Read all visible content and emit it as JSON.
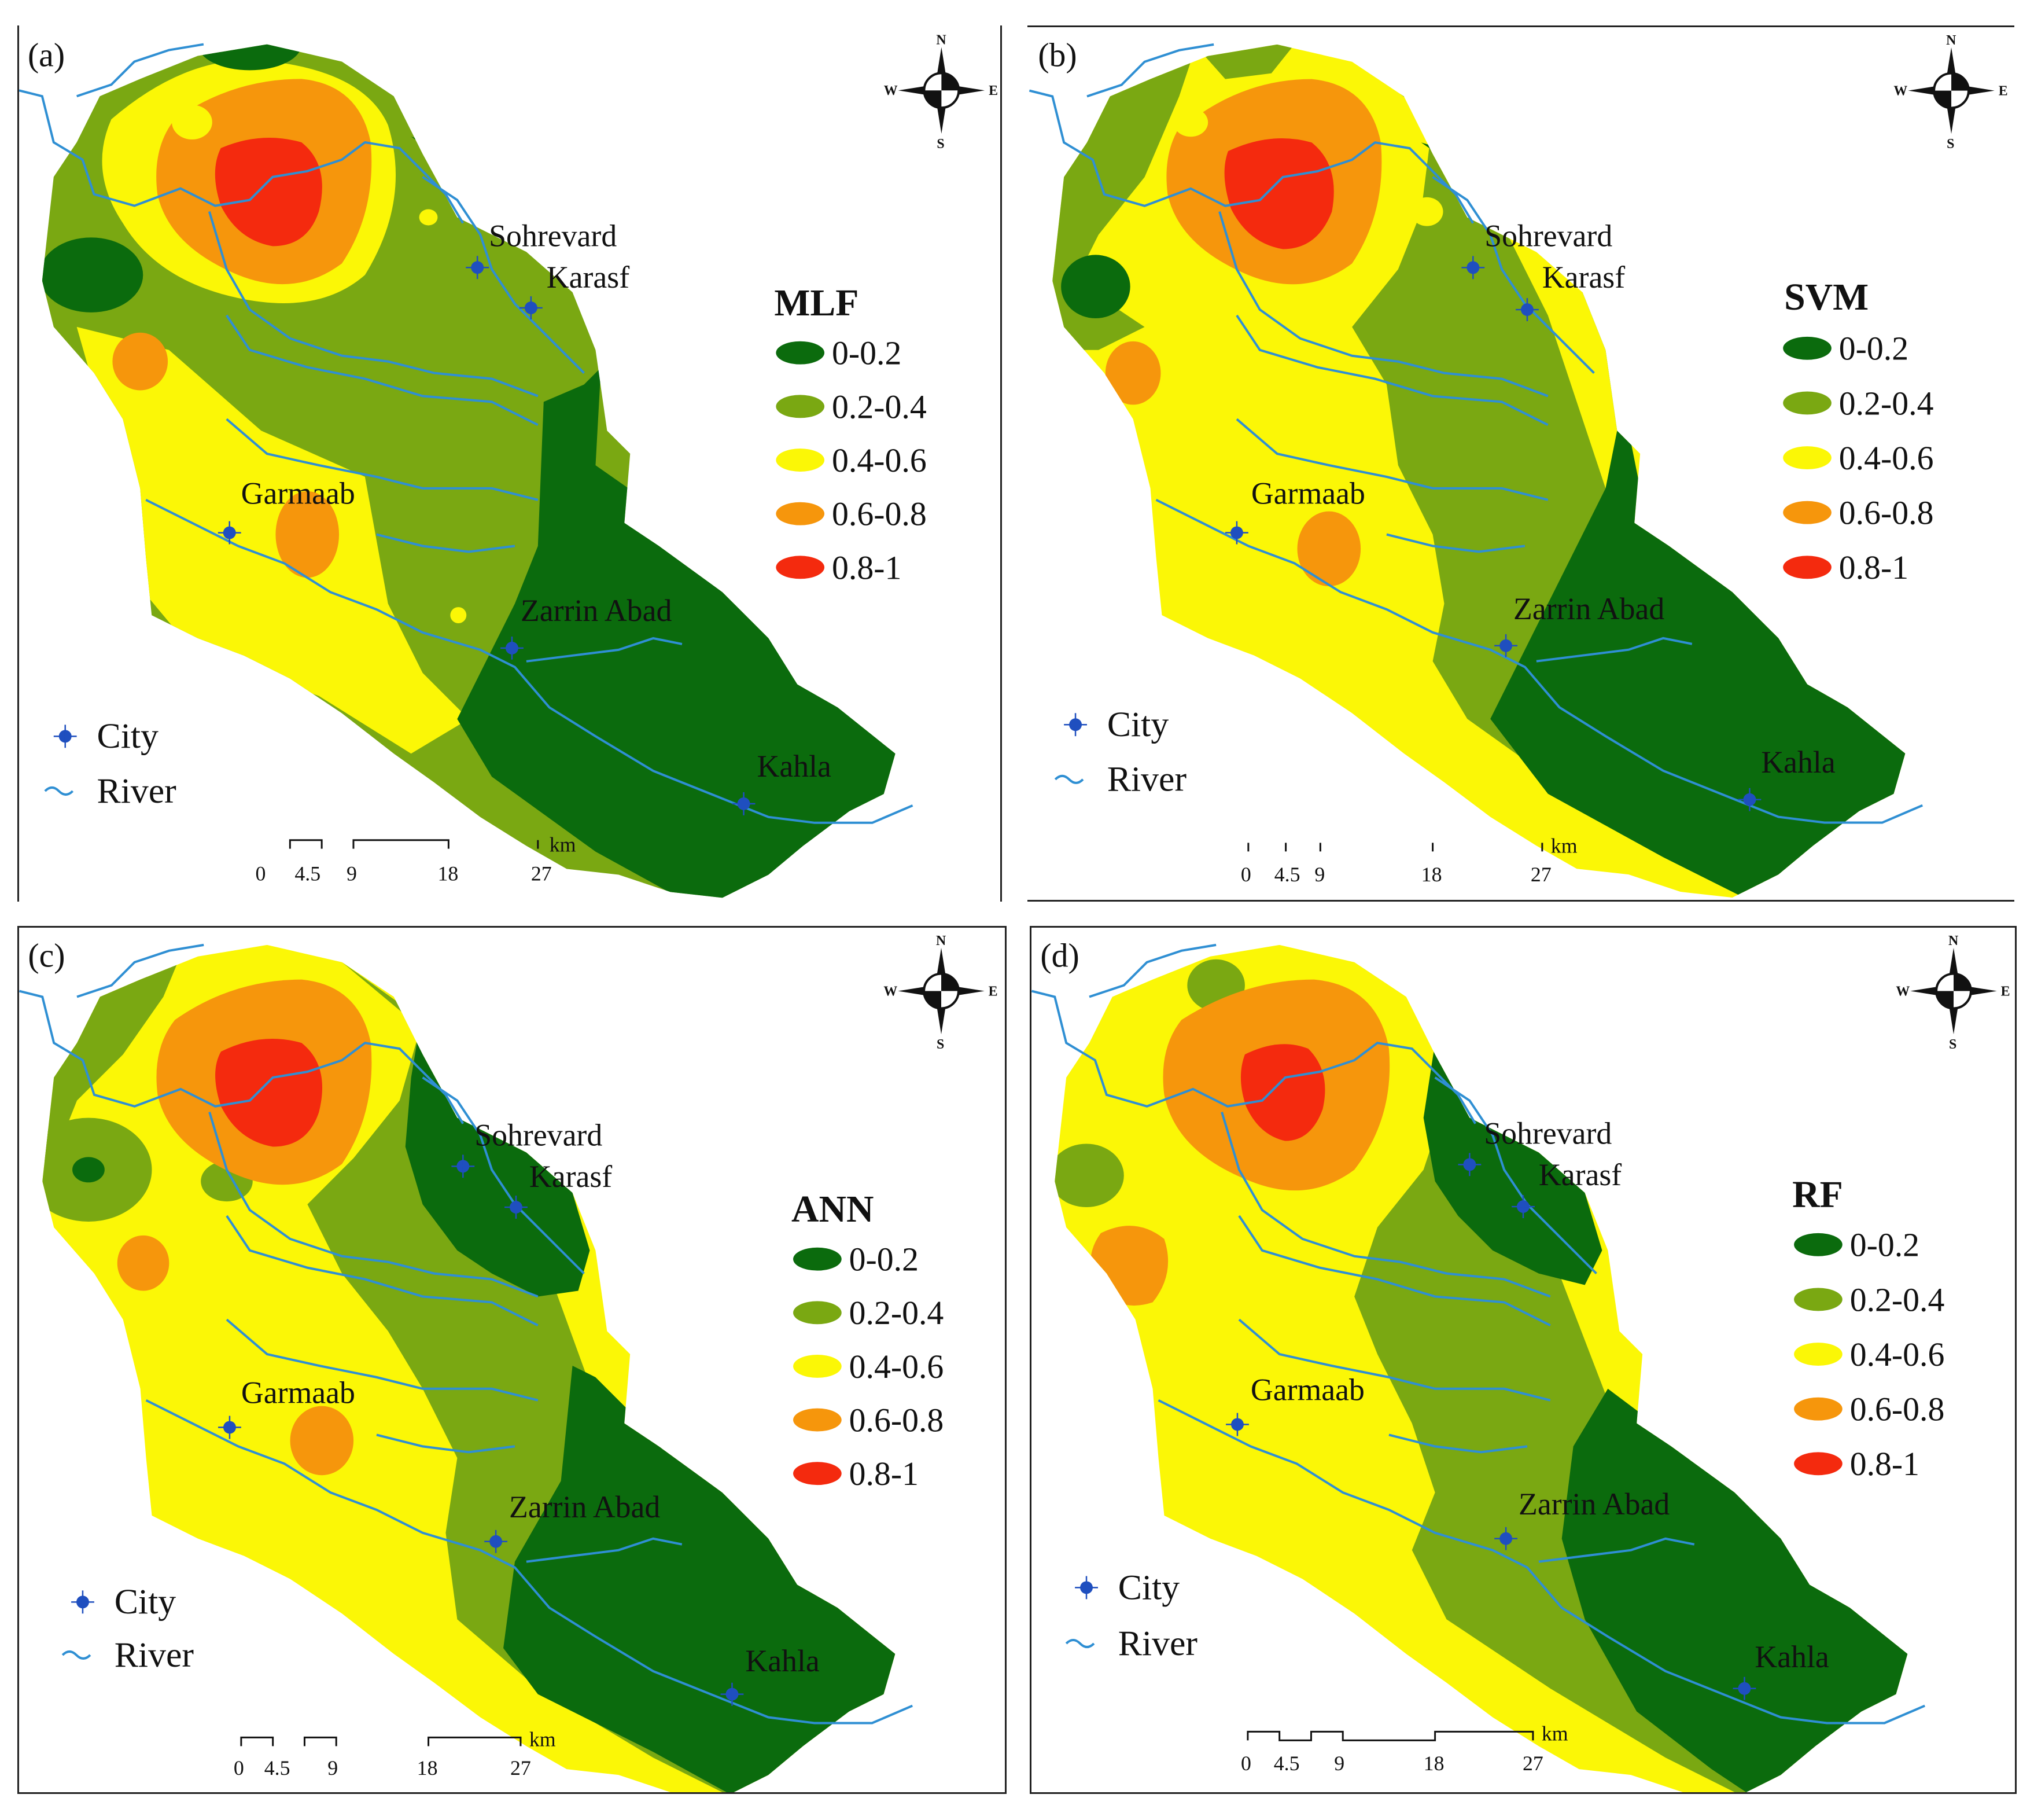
{
  "colors": {
    "class_0_0_2": "#0b6b0d",
    "class_0_2_0_4": "#7aa812",
    "class_0_4_0_6": "#fbf706",
    "class_0_6_0_8": "#f6960c",
    "class_0_8_1": "#f42a0e",
    "river": "#2f8fd3",
    "city": "#1f4fbf"
  },
  "legend_classes": [
    "0-0.2",
    "0.2-0.4",
    "0.4-0.6",
    "0.6-0.8",
    "0.8-1"
  ],
  "cities": [
    "Sohrevard",
    "Karasf",
    "Garmaab",
    "Zarrin Abad",
    "Kahla"
  ],
  "map_key": {
    "city": "City",
    "river": "River"
  },
  "compass": {
    "n": "N",
    "s": "S",
    "e": "E",
    "w": "W"
  },
  "scale": {
    "unit": "km",
    "ticks": [
      "0",
      "4.5",
      "9",
      "18",
      "27"
    ]
  },
  "panels": [
    {
      "label": "(a)",
      "model": "MLF"
    },
    {
      "label": "(b)",
      "model": "SVM"
    },
    {
      "label": "(c)",
      "model": "ANN"
    },
    {
      "label": "(d)",
      "model": "RF"
    }
  ]
}
